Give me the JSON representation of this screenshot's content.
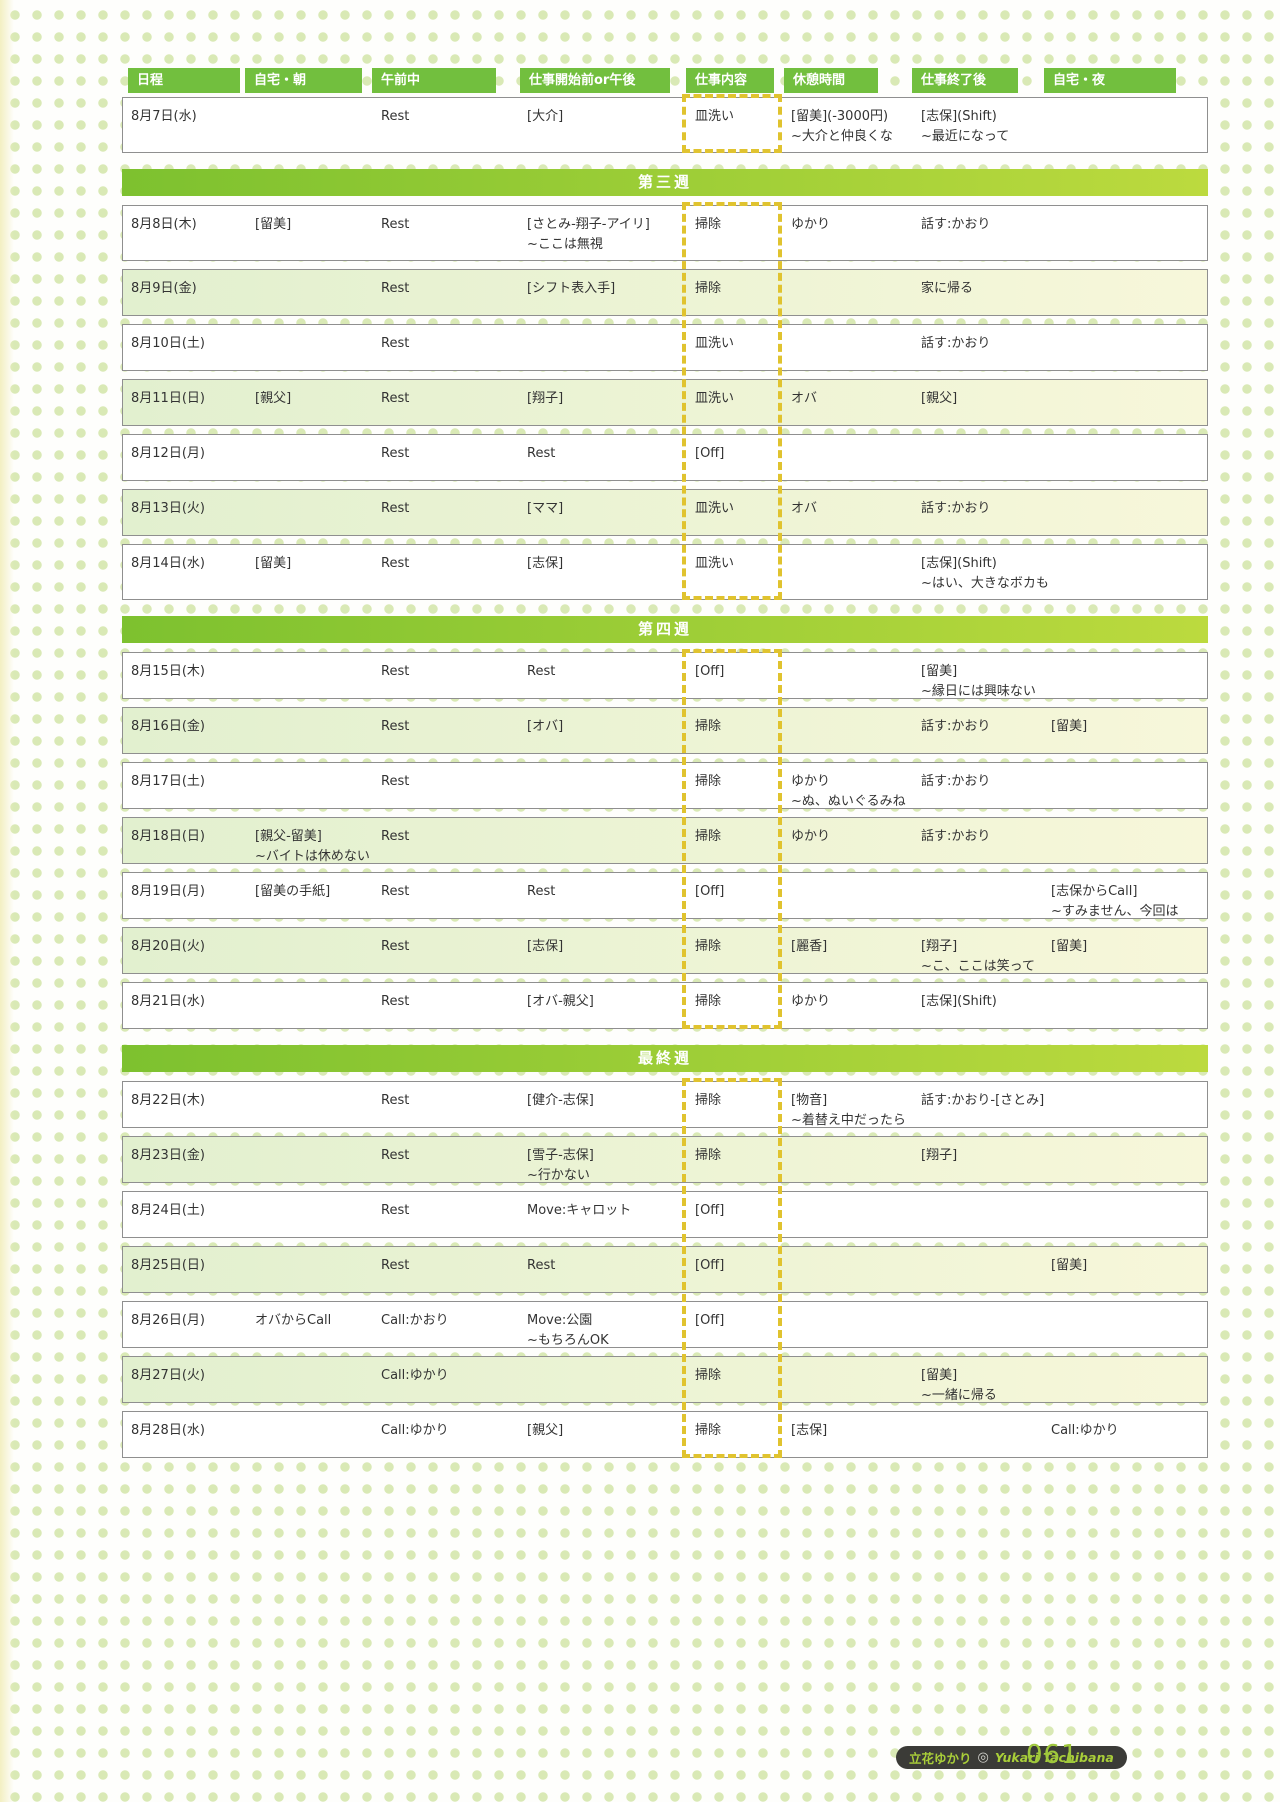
{
  "header": {
    "columns": [
      "日程",
      "自宅・朝",
      "午前中",
      "仕事開始前or午後",
      "仕事内容",
      "休憩時間",
      "仕事終了後",
      "自宅・夜"
    ]
  },
  "sections": [
    {
      "label": "",
      "rows": [
        {
          "cells": [
            "8月7日(水)",
            "",
            "Rest",
            "[大介]",
            "皿洗い",
            "[留美](-3000円)\n~大介と仲良くな",
            "[志保](Shift)\n~最近になって",
            ""
          ]
        }
      ]
    },
    {
      "label": "第三週",
      "rows": [
        {
          "cells": [
            "8月8日(木)",
            "[留美]",
            "Rest",
            "[さとみ-翔子-アイリ]\n~ここは無視",
            "掃除",
            "ゆかり",
            "話す:かおり",
            ""
          ]
        },
        {
          "cells": [
            "8月9日(金)",
            "",
            "Rest",
            "[シフト表入手]",
            "掃除",
            "",
            "家に帰る",
            ""
          ]
        },
        {
          "cells": [
            "8月10日(土)",
            "",
            "Rest",
            "",
            "皿洗い",
            "",
            "話す:かおり",
            ""
          ]
        },
        {
          "cells": [
            "8月11日(日)",
            "[親父]",
            "Rest",
            "[翔子]",
            "皿洗い",
            "オバ",
            "[親父]",
            ""
          ]
        },
        {
          "cells": [
            "8月12日(月)",
            "",
            "Rest",
            "Rest",
            "[Off]",
            "",
            "",
            ""
          ]
        },
        {
          "cells": [
            "8月13日(火)",
            "",
            "Rest",
            "[ママ]",
            "皿洗い",
            "オバ",
            "話す:かおり",
            ""
          ]
        },
        {
          "cells": [
            "8月14日(水)",
            "[留美]",
            "Rest",
            "[志保]",
            "皿洗い",
            "",
            "[志保](Shift)\n~はい、大きなボカも",
            ""
          ]
        }
      ]
    },
    {
      "label": "第四週",
      "rows": [
        {
          "cells": [
            "8月15日(木)",
            "",
            "Rest",
            "Rest",
            "[Off]",
            "",
            "[留美]\n~縁日には興味ない",
            ""
          ]
        },
        {
          "cells": [
            "8月16日(金)",
            "",
            "Rest",
            "[オバ]",
            "掃除",
            "",
            "話す:かおり",
            "[留美]"
          ]
        },
        {
          "cells": [
            "8月17日(土)",
            "",
            "Rest",
            "",
            "掃除",
            "ゆかり\n~ぬ、ぬいぐるみね",
            "話す:かおり",
            ""
          ]
        },
        {
          "cells": [
            "8月18日(日)",
            "[親父-留美]\n~バイトは休めない",
            "Rest",
            "",
            "掃除",
            "ゆかり",
            "話す:かおり",
            ""
          ]
        },
        {
          "cells": [
            "8月19日(月)",
            "[留美の手紙]",
            "Rest",
            "Rest",
            "[Off]",
            "",
            "",
            "[志保からCall]\n~すみません、今回は"
          ]
        },
        {
          "cells": [
            "8月20日(火)",
            "",
            "Rest",
            "[志保]",
            "掃除",
            "[麗香]",
            "[翔子]\n~こ、ここは笑って",
            "[留美]"
          ]
        },
        {
          "cells": [
            "8月21日(水)",
            "",
            "Rest",
            "[オバ-親父]",
            "掃除",
            "ゆかり",
            "[志保](Shift)",
            ""
          ]
        }
      ]
    },
    {
      "label": "最終週",
      "rows": [
        {
          "cells": [
            "8月22日(木)",
            "",
            "Rest",
            "[健介-志保]",
            "掃除",
            "[物音]\n~着替え中だったら",
            "話す:かおり-[さとみ]",
            ""
          ]
        },
        {
          "cells": [
            "8月23日(金)",
            "",
            "Rest",
            "[雪子-志保]\n~行かない",
            "掃除",
            "",
            "[翔子]",
            ""
          ]
        },
        {
          "cells": [
            "8月24日(土)",
            "",
            "Rest",
            "Move:キャロット",
            "[Off]",
            "",
            "",
            ""
          ]
        },
        {
          "cells": [
            "8月25日(日)",
            "",
            "Rest",
            "Rest",
            "[Off]",
            "",
            "",
            "[留美]"
          ]
        },
        {
          "cells": [
            "8月26日(月)",
            "オバからCall",
            "Call:かおり",
            "Move:公園\n~もちろんOK",
            "[Off]",
            "",
            "",
            ""
          ]
        },
        {
          "cells": [
            "8月27日(火)",
            "",
            "Call:ゆかり",
            "",
            "掃除",
            "",
            "[留美]\n~一緒に帰る",
            ""
          ]
        },
        {
          "cells": [
            "8月28日(水)",
            "",
            "Call:ゆかり",
            "[親父]",
            "掃除",
            "[志保]",
            "",
            "Call:ゆかり"
          ]
        }
      ]
    }
  ],
  "footer": {
    "character_jp": "立花ゆかり",
    "character_en": "Yukari Tachibana",
    "page_number": "061"
  },
  "colors": {
    "header_tab_green": "#72bf3e",
    "section_bar_gradient_start": "#7dc12f",
    "section_bar_gradient_end": "#bcda3e",
    "highlight_dashed_yellow": "#e0c32f",
    "row_shaded_green": "#e2f0cf",
    "background_dot_green": "#d9e9b5",
    "footer_accent_green": "#a9ce39"
  }
}
